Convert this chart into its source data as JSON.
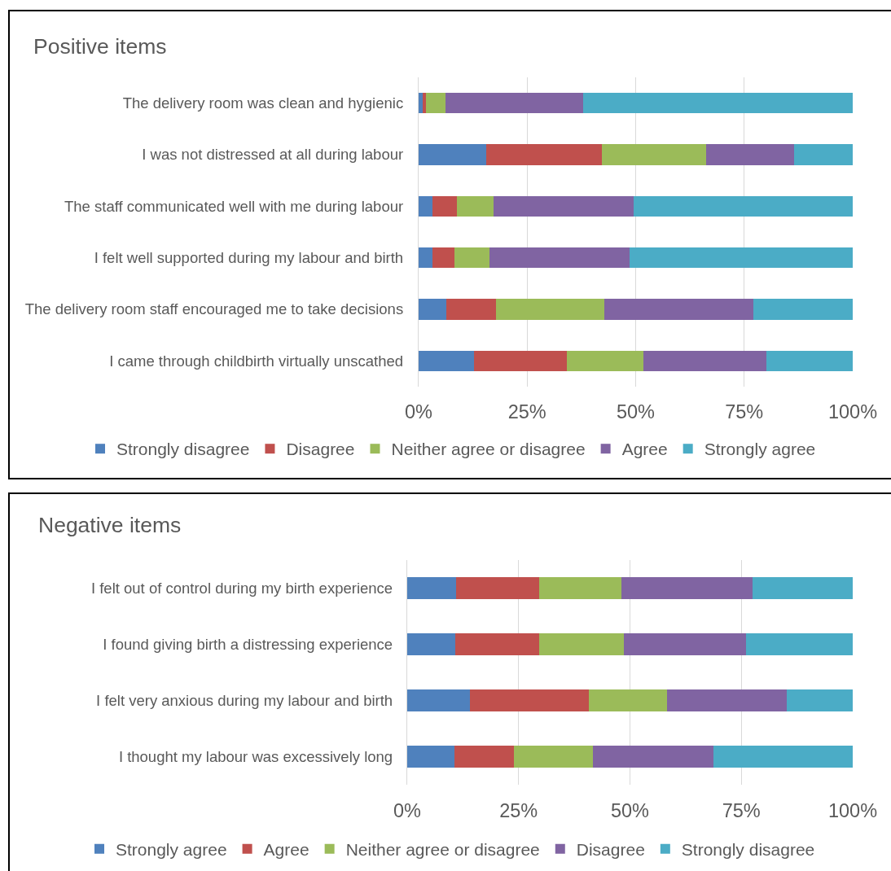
{
  "chart_data": [
    {
      "type": "bar",
      "orientation": "horizontal",
      "stacked": true,
      "title": "Positive items",
      "categories": [
        "The delivery room was clean and hygienic",
        "I was not distressed at all during labour",
        "The staff communicated well with me during labour",
        "I felt well supported during my labour and birth",
        "The delivery room staff encouraged me to take decisions",
        "I came through childbirth virtually unscathed"
      ],
      "series": [
        {
          "name": "Strongly disagree",
          "color": "#4f81bd",
          "values": [
            0.9,
            15.6,
            3.1,
            3.1,
            6.4,
            12.8
          ]
        },
        {
          "name": "Disagree",
          "color": "#c0504d",
          "values": [
            0.8,
            26.7,
            5.7,
            5.1,
            11.4,
            21.4
          ]
        },
        {
          "name": "Neither agree or disagree",
          "color": "#9bbb59",
          "values": [
            4.5,
            24.0,
            8.5,
            8.2,
            25.0,
            17.5
          ]
        },
        {
          "name": "Agree",
          "color": "#8064a2",
          "values": [
            31.7,
            20.1,
            32.3,
            32.2,
            34.4,
            28.5
          ]
        },
        {
          "name": "Strongly agree",
          "color": "#4bacc6",
          "values": [
            62.1,
            13.6,
            50.4,
            51.4,
            22.8,
            19.8
          ]
        }
      ],
      "xlim": [
        0,
        100
      ],
      "xticks": [
        {
          "value": 0,
          "label": "0%"
        },
        {
          "value": 25,
          "label": "25%"
        },
        {
          "value": 50,
          "label": "50%"
        },
        {
          "value": 75,
          "label": "75%"
        },
        {
          "value": 100,
          "label": "100%"
        }
      ],
      "grid": "x",
      "legend": "bottom"
    },
    {
      "type": "bar",
      "orientation": "horizontal",
      "stacked": true,
      "title": "Negative items",
      "categories": [
        "I felt out of control during my birth experience",
        "I found giving birth a distressing experience",
        "I felt very anxious during my labour and birth",
        "I thought my labour was excessively long"
      ],
      "series": [
        {
          "name": "Strongly agree",
          "color": "#4f81bd",
          "values": [
            11.0,
            10.8,
            14.1,
            10.6
          ]
        },
        {
          "name": "Agree",
          "color": "#c0504d",
          "values": [
            18.7,
            18.9,
            26.6,
            13.4
          ]
        },
        {
          "name": "Neither agree or disagree",
          "color": "#9bbb59",
          "values": [
            18.4,
            18.9,
            17.6,
            17.6
          ]
        },
        {
          "name": "Disagree",
          "color": "#8064a2",
          "values": [
            29.5,
            27.4,
            26.9,
            27.1
          ]
        },
        {
          "name": "Strongly disagree",
          "color": "#4bacc6",
          "values": [
            22.4,
            24.0,
            14.8,
            31.3
          ]
        }
      ],
      "xlim": [
        0,
        100
      ],
      "xticks": [
        {
          "value": 0,
          "label": "0%"
        },
        {
          "value": 25,
          "label": "25%"
        },
        {
          "value": 50,
          "label": "50%"
        },
        {
          "value": 75,
          "label": "75%"
        },
        {
          "value": 100,
          "label": "100%"
        }
      ],
      "grid": "x",
      "legend": "bottom"
    }
  ]
}
